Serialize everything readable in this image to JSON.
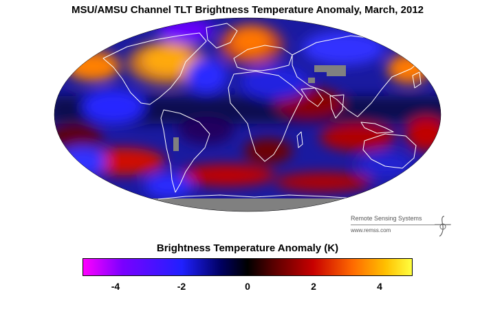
{
  "title": "MSU/AMSU Channel TLT Brightness Temperature Anomaly, March, 2012",
  "colorbar": {
    "label": "Brightness Temperature Anomaly (K)",
    "range": [
      -5,
      5
    ],
    "ticks": [
      "-4",
      "-2",
      "0",
      "2",
      "4"
    ],
    "tick_values": [
      -4,
      -2,
      0,
      2,
      4
    ],
    "colors": [
      "#ff00ff",
      "#7a00ff",
      "#2020ff",
      "#000060",
      "#000000",
      "#5a0000",
      "#c80000",
      "#ff6a00",
      "#ffc000",
      "#ffff40"
    ]
  },
  "credit": {
    "name": "Remote Sensing Systems",
    "url": "www.remss.com"
  },
  "map": {
    "projection": "Mollweide",
    "coastline_color": "#ffffff",
    "no_data_color": "#808080"
  }
}
